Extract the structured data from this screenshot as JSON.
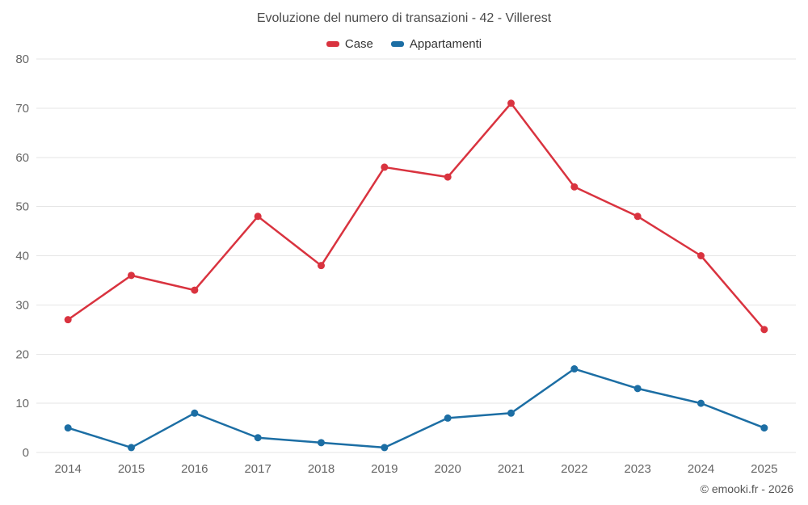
{
  "page": {
    "footer": "© emooki.fr - 2026"
  },
  "chart_data": {
    "type": "line",
    "title": "Evoluzione del numero di transazioni - 42 - Villerest",
    "categories": [
      "2014",
      "2015",
      "2016",
      "2017",
      "2018",
      "2019",
      "2020",
      "2021",
      "2022",
      "2023",
      "2024",
      "2025"
    ],
    "series": [
      {
        "name": "Case",
        "color": "#d9333f",
        "values": [
          27,
          36,
          33,
          48,
          38,
          58,
          56,
          71,
          54,
          48,
          40,
          25
        ]
      },
      {
        "name": "Appartamenti",
        "color": "#1c6ea4",
        "values": [
          5,
          1,
          8,
          3,
          2,
          1,
          7,
          8,
          17,
          13,
          10,
          5
        ]
      }
    ],
    "ylim": [
      0,
      80
    ],
    "ytick_step": 10,
    "grid": true,
    "legend_position": "top",
    "xlabel": "",
    "ylabel": ""
  }
}
